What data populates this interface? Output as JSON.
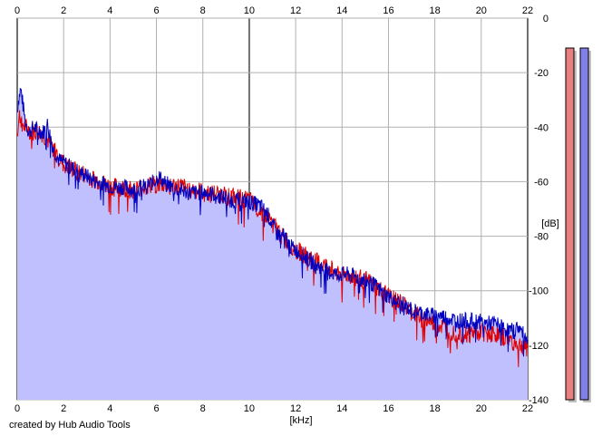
{
  "credit": "created by Hub Audio Tools",
  "chart_data": {
    "type": "area",
    "xlabel": "[kHz]",
    "ylabel": "[dB]",
    "xlim": [
      0,
      22
    ],
    "ylim": [
      -140,
      0
    ],
    "x_ticks": [
      "0",
      "2",
      "4",
      "6",
      "8",
      "10",
      "12",
      "14",
      "16",
      "18",
      "20",
      "22"
    ],
    "y_ticks": [
      "0",
      "-20",
      "-40",
      "-60",
      "-80",
      "-100",
      "-120",
      "-140"
    ],
    "grid": true,
    "fill_color": "#c0c0ff",
    "series": [
      {
        "color": "#0000c0",
        "x": [
          0,
          0.05,
          0.15,
          0.25,
          0.35,
          0.5,
          0.7,
          0.9,
          1.1,
          1.3,
          1.45,
          1.55,
          1.8,
          2.2,
          2.6,
          3.0,
          3.4,
          3.8,
          4.2,
          4.6,
          5.0,
          5.4,
          5.7,
          5.9,
          6.1,
          6.3,
          6.5,
          6.7,
          7.0,
          7.4,
          7.8,
          8.2,
          8.6,
          9.0,
          9.4,
          9.8,
          10.2,
          10.5,
          10.8,
          11.0,
          11.2,
          11.5,
          11.8,
          12.2,
          12.6,
          13.0,
          13.4,
          13.8,
          14.2,
          14.6,
          15.0,
          15.4,
          15.8,
          16.2,
          16.6,
          17.0,
          17.4,
          17.8,
          18.2,
          18.6,
          19.0,
          19.4,
          19.8,
          20.2,
          20.6,
          21.0,
          21.4,
          21.6,
          21.8,
          22.0
        ],
        "values": [
          -34,
          -30,
          -26,
          -32,
          -38,
          -42,
          -40,
          -41,
          -42,
          -39,
          -44,
          -48,
          -52,
          -54,
          -56,
          -58,
          -60,
          -61,
          -62,
          -62,
          -63,
          -62,
          -61,
          -60,
          -58,
          -60,
          -61,
          -62,
          -63,
          -64,
          -64,
          -64,
          -65,
          -66,
          -67,
          -67,
          -68,
          -69,
          -72,
          -76,
          -79,
          -80,
          -84,
          -86,
          -89,
          -91,
          -93,
          -94,
          -94,
          -95,
          -96,
          -98,
          -101,
          -103,
          -105,
          -107,
          -108,
          -109,
          -109,
          -110,
          -111,
          -111,
          -111,
          -112,
          -112,
          -114,
          -115,
          -113,
          -116,
          -118
        ]
      },
      {
        "color": "#e00000",
        "x": [
          0,
          0.1,
          0.3,
          0.6,
          1.0,
          1.5,
          2.0,
          3.0,
          4.0,
          5.0,
          6.0,
          7.0,
          8.0,
          9.0,
          10.0,
          10.8,
          11.4,
          12.0,
          13.0,
          14.0,
          15.0,
          15.8,
          16.4,
          17.0,
          17.6,
          18.2,
          18.8,
          19.4,
          20.0,
          20.6,
          21.2,
          21.6,
          22.0
        ],
        "values": [
          -42,
          -36,
          -40,
          -42,
          -42,
          -47,
          -54,
          -58,
          -62,
          -63,
          -61,
          -62,
          -64,
          -65,
          -67,
          -73,
          -80,
          -85,
          -90,
          -94,
          -96,
          -101,
          -104,
          -108,
          -111,
          -113,
          -115,
          -116,
          -115,
          -116,
          -118,
          -120,
          -121
        ]
      }
    ],
    "level_meters": [
      {
        "color": "#e88080",
        "level": 1.0
      },
      {
        "color": "#8080e8",
        "level": 1.0
      }
    ]
  }
}
